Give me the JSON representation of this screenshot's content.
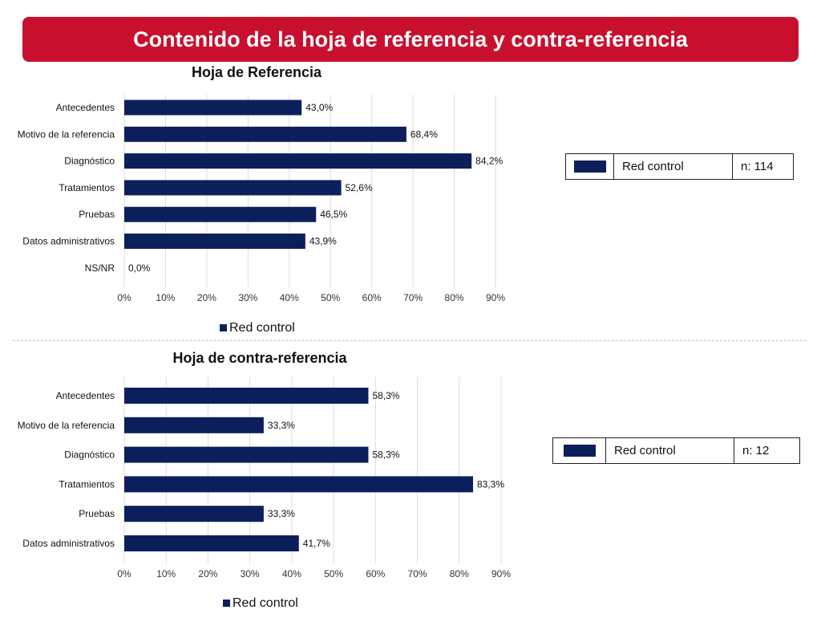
{
  "banner": {
    "title": "Contenido de la hoja de referencia y contra-referencia"
  },
  "colors": {
    "banner": "#c8102e",
    "series": "#0c1f5c",
    "grid": "#dddddd"
  },
  "chart_data": [
    {
      "type": "bar",
      "orientation": "horizontal",
      "title": "Hoja de Referencia",
      "categories": [
        "Antecedentes",
        "Motivo de la referencia",
        "Diagnóstico",
        "Tratamientos",
        "Pruebas",
        "Datos administrativos",
        "NS/NR"
      ],
      "series": [
        {
          "name": "Red control",
          "values": [
            43.0,
            68.4,
            84.2,
            52.6,
            46.5,
            43.9,
            0.0
          ]
        }
      ],
      "data_labels": [
        "43,0%",
        "68,4%",
        "84,2%",
        "52,6%",
        "46,5%",
        "43,9%",
        "0,0%"
      ],
      "x_ticks": [
        "0%",
        "10%",
        "20%",
        "30%",
        "40%",
        "50%",
        "60%",
        "70%",
        "80%",
        "90%"
      ],
      "xlim": [
        0,
        90
      ],
      "grid": true,
      "legend": {
        "position": "bottom",
        "label": "Red control"
      }
    },
    {
      "type": "bar",
      "orientation": "horizontal",
      "title": "Hoja de contra-referencia",
      "categories": [
        "Antecedentes",
        "Motivo de la referencia",
        "Diagnóstico",
        "Tratamientos",
        "Pruebas",
        "Datos administrativos"
      ],
      "series": [
        {
          "name": "Red control",
          "values": [
            58.3,
            33.3,
            58.3,
            83.3,
            33.3,
            41.7
          ]
        }
      ],
      "data_labels": [
        "58,3%",
        "33,3%",
        "58,3%",
        "83,3%",
        "33,3%",
        "41,7%"
      ],
      "x_ticks": [
        "0%",
        "10%",
        "20%",
        "30%",
        "40%",
        "50%",
        "60%",
        "70%",
        "80%",
        "90%"
      ],
      "xlim": [
        0,
        90
      ],
      "grid": true,
      "legend": {
        "position": "bottom",
        "label": "Red control"
      }
    }
  ],
  "legend_tables": [
    {
      "label": "Red control",
      "n": "n: 114"
    },
    {
      "label": "Red control",
      "n": "n: 12"
    }
  ]
}
